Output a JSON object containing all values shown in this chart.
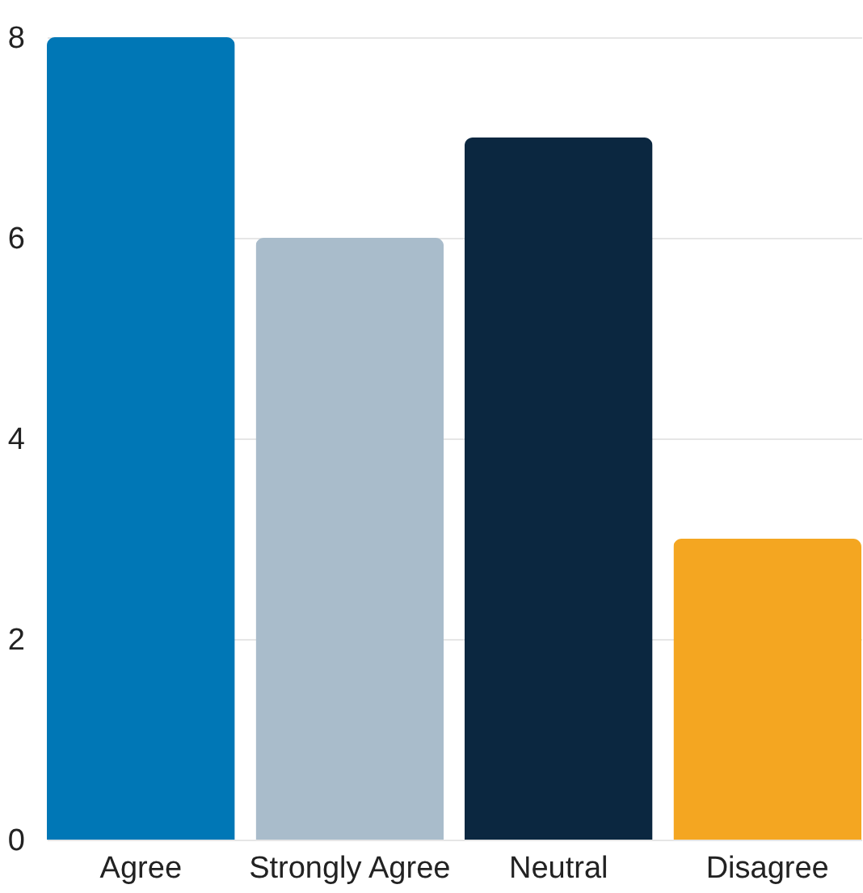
{
  "chart_data": {
    "type": "bar",
    "categories": [
      "Agree",
      "Strongly Agree",
      "Neutral",
      "Disagree"
    ],
    "values": [
      8,
      6,
      7,
      3
    ],
    "colors": [
      "#0077b6",
      "#a9bccb",
      "#0b2740",
      "#f4a621"
    ],
    "ylim": [
      0,
      8
    ],
    "yticks": [
      0,
      2,
      4,
      6,
      8
    ],
    "grid": "y"
  }
}
